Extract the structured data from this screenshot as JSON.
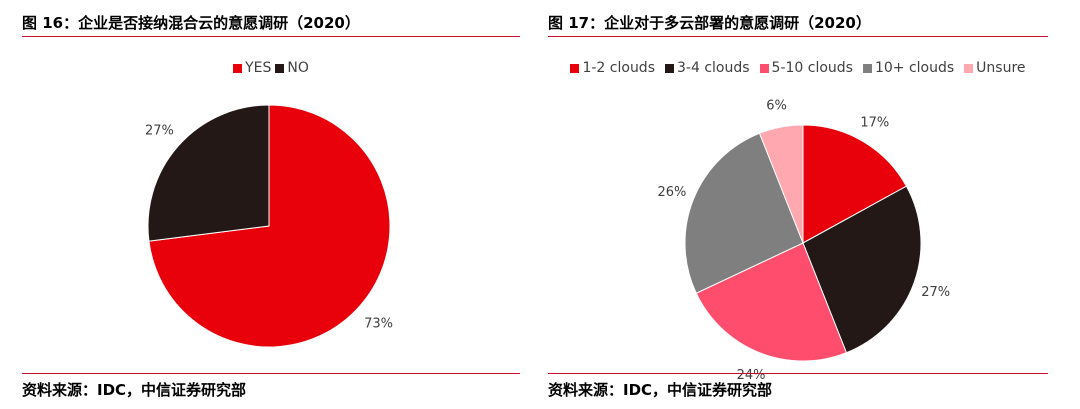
{
  "chart_data": [
    {
      "type": "pie",
      "title": "图 16：企业是否接纳混合云的意愿调研（2020）",
      "source": "资料来源：IDC，中信证券研究部",
      "categories": [
        "YES",
        "NO"
      ],
      "values": [
        73,
        27
      ],
      "labels": [
        "73%",
        "27%"
      ],
      "colors": [
        "#e8000b",
        "#231815"
      ],
      "legend_position": "top"
    },
    {
      "type": "pie",
      "title": "图 17：企业对于多云部署的意愿调研（2020）",
      "source": "资料来源：IDC，中信证券研究部",
      "categories": [
        "1-2 clouds",
        "3-4 clouds",
        "5-10 clouds",
        "10+ clouds",
        "Unsure"
      ],
      "values": [
        17,
        27,
        24,
        26,
        6
      ],
      "labels": [
        "17%",
        "27%",
        "24%",
        "26%",
        "6%"
      ],
      "colors": [
        "#e8000b",
        "#231815",
        "#ff4d6d",
        "#7f7f7f",
        "#ffa8b0"
      ],
      "legend_position": "top"
    }
  ]
}
